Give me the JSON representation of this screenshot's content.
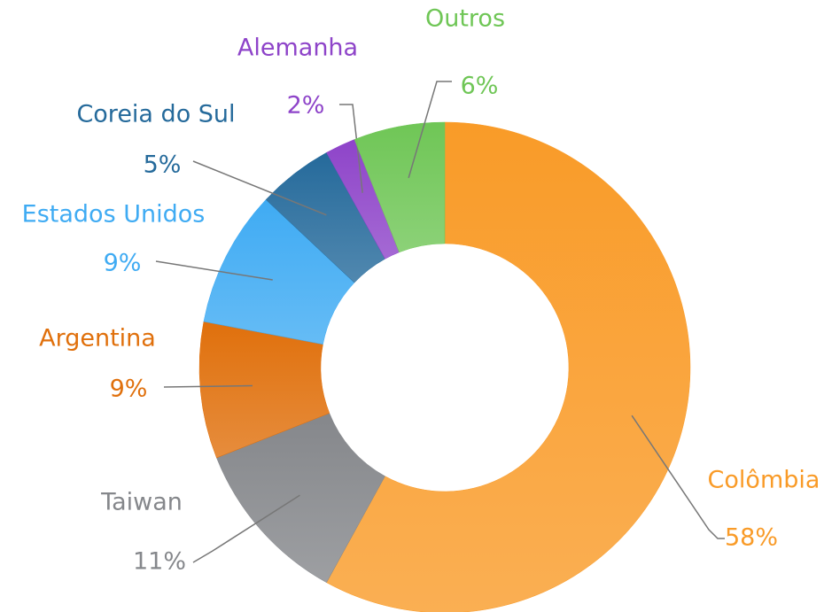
{
  "chart_data": {
    "type": "donut",
    "categories": [
      "Colômbia",
      "Taiwan",
      "Argentina",
      "Estados Unidos",
      "Coreia do Sul",
      "Alemanha",
      "Outros"
    ],
    "values": [
      58,
      11,
      9,
      9,
      5,
      2,
      6
    ],
    "value_labels": [
      "58%",
      "11%",
      "9%",
      "9%",
      "5%",
      "2%",
      "6%"
    ],
    "colors": [
      "#f99b28",
      "#85878b",
      "#e0700c",
      "#3fabf3",
      "#256a9b",
      "#8e44c9",
      "#6fc656"
    ]
  }
}
